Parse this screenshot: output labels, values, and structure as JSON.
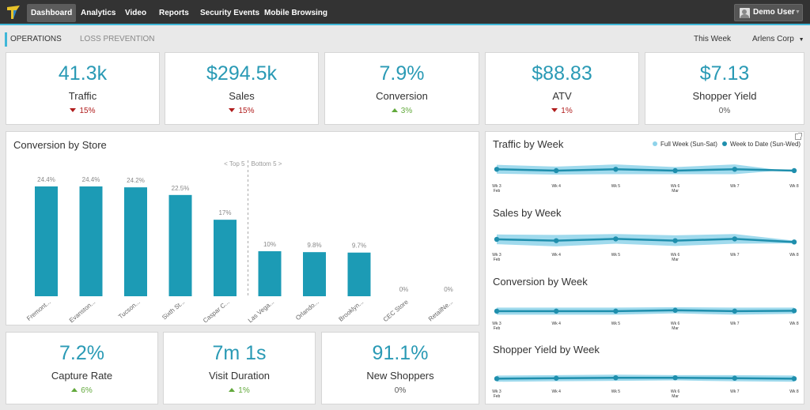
{
  "topnav": {
    "items": [
      "Dashboard",
      "Analytics",
      "Video",
      "Reports",
      "Security Events",
      "Mobile Browsing"
    ],
    "user": "Demo User"
  },
  "subnav": {
    "tabs": [
      "OPERATIONS",
      "LOSS PREVENTION"
    ],
    "period": "This Week",
    "org": "Arlens Corp"
  },
  "kpis_top": [
    {
      "value": "41.3k",
      "label": "Traffic",
      "change": "15%",
      "dir": "down"
    },
    {
      "value": "$294.5k",
      "label": "Sales",
      "change": "15%",
      "dir": "down"
    },
    {
      "value": "7.9%",
      "label": "Conversion",
      "change": "3%",
      "dir": "up"
    },
    {
      "value": "$88.83",
      "label": "ATV",
      "change": "1%",
      "dir": "down"
    },
    {
      "value": "$7.13",
      "label": "Shopper Yield",
      "change": "0%",
      "dir": "none"
    }
  ],
  "kpis_bottom": [
    {
      "value": "7.2%",
      "label": "Capture Rate",
      "change": "6%",
      "dir": "up"
    },
    {
      "value": "7m 1s",
      "label": "Visit Duration",
      "change": "1%",
      "dir": "up"
    },
    {
      "value": "91.1%",
      "label": "New Shoppers",
      "change": "0%",
      "dir": "none"
    }
  ],
  "conversion_chart": {
    "title": "Conversion by Store",
    "top_label": "< Top 5",
    "bottom_label": "Bottom 5 >",
    "color": "#1c9bb5"
  },
  "week_legend": {
    "full": "Full Week (Sun-Sat)",
    "todate": "Week to Date (Sun-Wed)"
  },
  "colors": {
    "accent": "#3fb7d8",
    "kpi": "#2a9ab5",
    "negative": "#b01c1c",
    "positive": "#62a93c",
    "band": "#8fd3ea",
    "line": "#1f8fad"
  },
  "chart_data": [
    {
      "type": "bar",
      "title": "Conversion by Store",
      "categories": [
        "Fremont...",
        "Evanston...",
        "Tucson...",
        "Sixth St...",
        "Caspar C...",
        "Las Vega...",
        "Orlando...",
        "Brooklyn...",
        "CEC Store",
        "RetailNe..."
      ],
      "values": [
        24.4,
        24.4,
        24.2,
        22.5,
        17,
        10,
        9.8,
        9.7,
        0,
        0
      ],
      "value_labels": [
        "24.4%",
        "24.4%",
        "24.2%",
        "22.5%",
        "17%",
        "10%",
        "9.8%",
        "9.7%",
        "0%",
        "0%"
      ],
      "ylim": [
        0,
        28
      ]
    },
    {
      "type": "area",
      "title": "Traffic by Week",
      "categories": [
        "Wk 3",
        "Wk 4",
        "Wk 5",
        "Wk 6",
        "Wk 7",
        "Wk 8"
      ],
      "month_labels": [
        "Feb",
        "",
        "",
        "Mar",
        "",
        ""
      ],
      "series": [
        {
          "name": "Full Week (Sun-Sat)",
          "values": [
            7.2,
            6.8,
            7.3,
            6.7,
            7.3,
            5.6
          ]
        },
        {
          "name": "Week to Date (Sun-Wed)",
          "values": [
            6.2,
            5.9,
            6.2,
            5.9,
            6.2,
            5.9
          ]
        }
      ],
      "ylim": [
        0,
        10
      ]
    },
    {
      "type": "area",
      "title": "Sales by Week",
      "categories": [
        "Wk 3",
        "Wk 4",
        "Wk 5",
        "Wk 6",
        "Wk 7",
        "Wk 8"
      ],
      "month_labels": [
        "Feb",
        "",
        "",
        "Mar",
        "",
        ""
      ],
      "series": [
        {
          "name": "Full Week (Sun-Sat)",
          "values": [
            7.0,
            6.9,
            7.1,
            6.8,
            7.1,
            5.6
          ]
        },
        {
          "name": "Week to Date (Sun-Wed)",
          "values": [
            5.9,
            5.6,
            6.0,
            5.6,
            6.0,
            5.3
          ]
        }
      ],
      "ylim": [
        0,
        10
      ]
    },
    {
      "type": "area",
      "title": "Conversion by Week",
      "categories": [
        "Wk 3",
        "Wk 4",
        "Wk 5",
        "Wk 6",
        "Wk 7",
        "Wk 8"
      ],
      "month_labels": [
        "Feb",
        "",
        "",
        "Mar",
        "",
        ""
      ],
      "series": [
        {
          "name": "Full Week (Sun-Sat)",
          "values": [
            6.0,
            6.0,
            6.0,
            6.1,
            6.0,
            6.0
          ]
        },
        {
          "name": "Week to Date (Sun-Wed)",
          "values": [
            5.2,
            5.2,
            5.2,
            5.4,
            5.2,
            5.3
          ]
        }
      ],
      "ylim": [
        0,
        10
      ]
    },
    {
      "type": "area",
      "title": "Shopper Yield by Week",
      "categories": [
        "Wk 3",
        "Wk 4",
        "Wk 5",
        "Wk 6",
        "Wk 7",
        "Wk 8"
      ],
      "month_labels": [
        "Feb",
        "",
        "",
        "Mar",
        "",
        ""
      ],
      "series": [
        {
          "name": "Full Week (Sun-Sat)",
          "values": [
            6.0,
            6.1,
            6.2,
            6.1,
            6.1,
            6.0
          ]
        },
        {
          "name": "Week to Date (Sun-Wed)",
          "values": [
            5.3,
            5.4,
            5.5,
            5.5,
            5.4,
            5.3
          ]
        }
      ],
      "ylim": [
        0,
        10
      ]
    }
  ]
}
